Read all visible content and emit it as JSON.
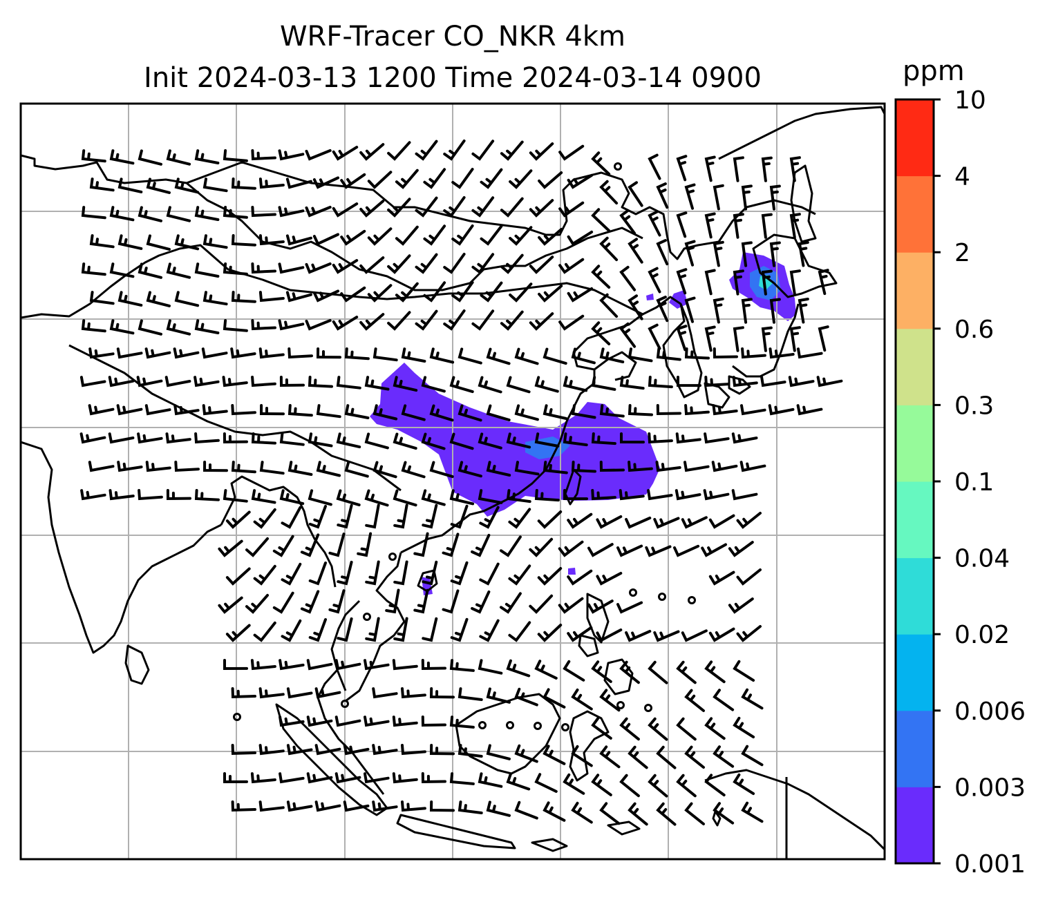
{
  "title": {
    "line1": "WRF-Tracer CO_NKR 4km",
    "line2": "Init 2024-03-13 1200 Time 2024-03-14 0900"
  },
  "colorbar": {
    "unit": "ppm",
    "levels": [
      "0.001",
      "0.003",
      "0.006",
      "0.02",
      "0.04",
      "0.1",
      "0.3",
      "0.6",
      "2",
      "4",
      "10"
    ],
    "colors": [
      "#6a2cfc",
      "#3374f3",
      "#04b3ef",
      "#2fdcd8",
      "#66f8c0",
      "#96fa9a",
      "#cfe28b",
      "#fdb064",
      "#ff7238",
      "#ff2a14"
    ]
  },
  "map": {
    "gridline_color": "#b0b0b0",
    "coastline_color": "#000000",
    "barb_color": "#000000",
    "tracer_color": "#6a2cfc",
    "tracer_core_color": "#3374f3",
    "tracer_peak_color": "#2fdcd8"
  }
}
